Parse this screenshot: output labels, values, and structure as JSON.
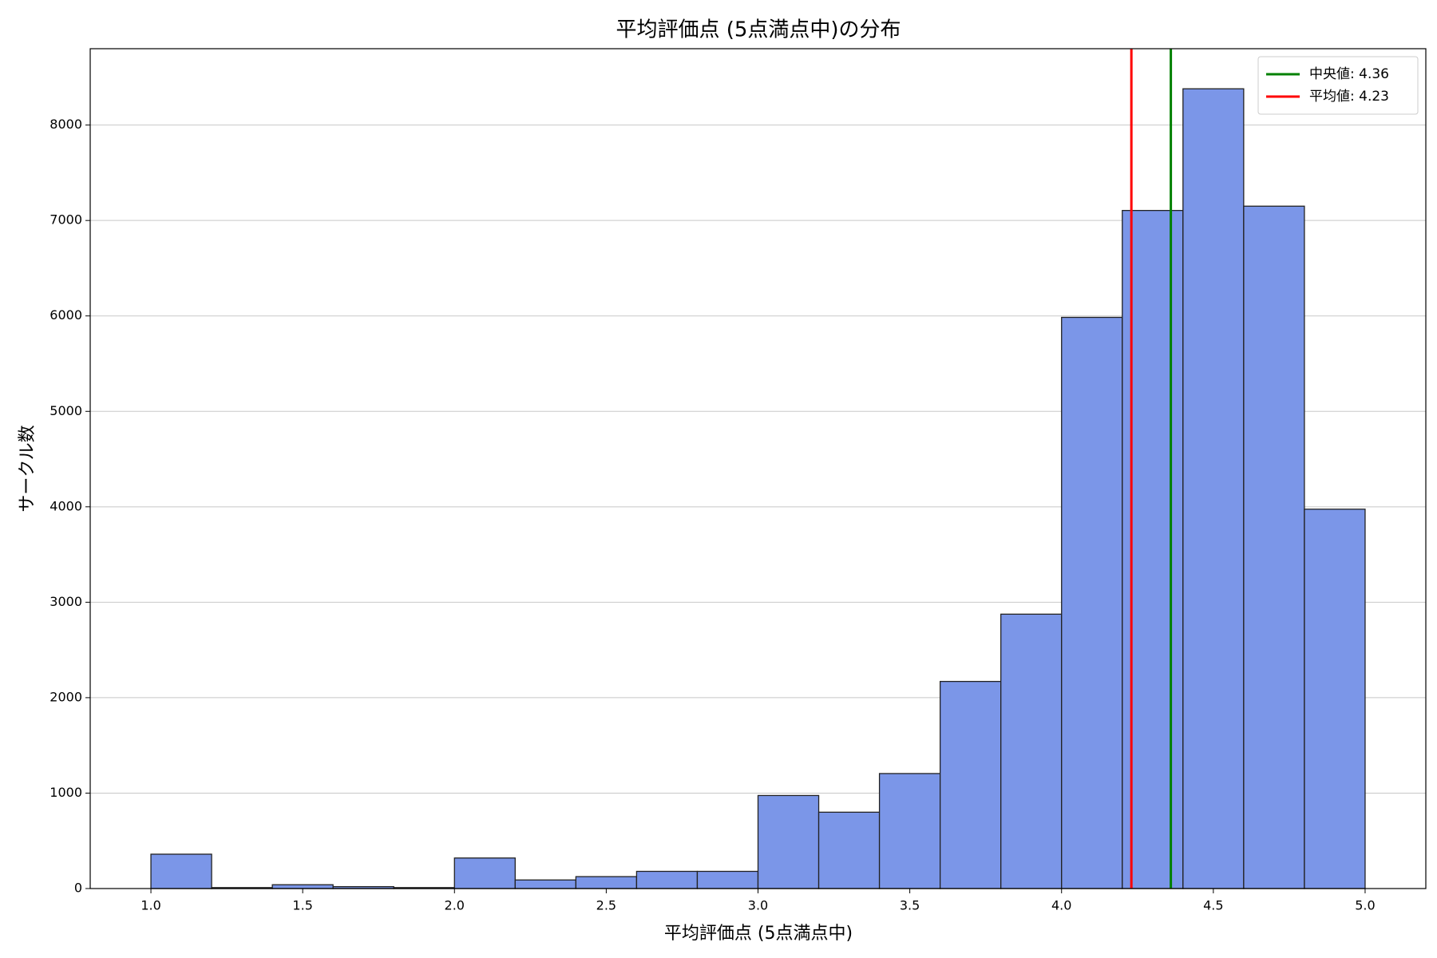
{
  "chart_data": {
    "type": "histogram",
    "title": "平均評価点 (5点満点中)の分布",
    "x_label": "平均評価点 (5点満点中)",
    "y_label": "サークル数",
    "bins": [
      1.0,
      1.2,
      1.4,
      1.6,
      1.8,
      2.0,
      2.2,
      2.4,
      2.6,
      2.8,
      3.0,
      3.2,
      3.4,
      3.6,
      3.8,
      4.0,
      4.2,
      4.4,
      4.6,
      4.8,
      5.0
    ],
    "counts": [
      360,
      10,
      40,
      20,
      10,
      320,
      90,
      125,
      180,
      180,
      975,
      800,
      1205,
      2170,
      2875,
      5985,
      7105,
      8380,
      7150,
      3975
    ],
    "color": "#7b96e8",
    "edgecolor": "#222222",
    "xlim": [
      0.8,
      5.2
    ],
    "ylim": [
      0,
      8800
    ],
    "xticks": [
      {
        "value": 1,
        "label": "1.0"
      },
      1.5,
      {
        "value": 2,
        "label": "2.0"
      },
      2.5,
      {
        "value": 3,
        "label": "3.0"
      },
      3.5,
      {
        "value": 4,
        "label": "4.0"
      },
      4.5,
      {
        "value": 5,
        "label": "5.0"
      }
    ],
    "yticks": [
      0,
      1000,
      2000,
      3000,
      4000,
      5000,
      6000,
      7000,
      8000
    ],
    "grid": "y",
    "vlines": [
      {
        "label": "中央値: 4.36",
        "value": 4.36,
        "color": "#008000"
      },
      {
        "label": "平均値: 4.23",
        "value": 4.23,
        "color": "#ff0000"
      }
    ],
    "legend": "upper right"
  }
}
